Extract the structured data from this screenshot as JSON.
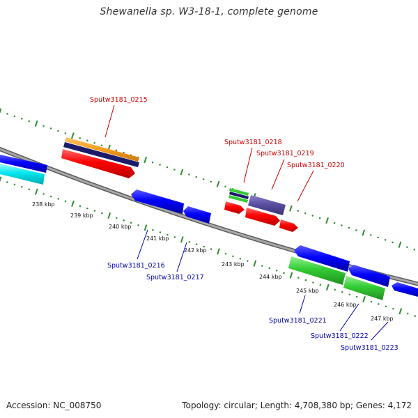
{
  "title": "Shewanella sp. W3-18-1, complete genome",
  "accession": "Accession: NC_008750",
  "topology": "Topology: circular; Length: 4,708,380 bp; Genes: 4,172",
  "kbp_labels": [
    "238 kbp",
    "239 kbp",
    "240 kbp",
    "241 kbp",
    "242 kbp",
    "243 kbp",
    "244 kbp",
    "245 kbp",
    "246 kbp",
    "247 kbp"
  ],
  "gene_labels_top": [
    "Sputw3181_0215",
    "Sputw3181_0218",
    "Sputw3181_0219",
    "Sputw3181_0220"
  ],
  "gene_labels_bottom": [
    "Sputw3181_0216",
    "Sputw3181_0217",
    "Sputw3181_0221",
    "Sputw3181_0222",
    "Sputw3181_0223"
  ],
  "colors": {
    "backbone": "#8a8a8a",
    "tick": "#2e8b2e",
    "label_top": "#cc0000",
    "label_bottom": "#0000aa",
    "cds_forward": "#ff0000",
    "cds_reverse": "#0000ff",
    "orange": "#f39c1e",
    "navy": "#1b1b6a",
    "purple": "#5a4fa0",
    "green": "#33cc33",
    "cyan": "#00e5ee"
  }
}
